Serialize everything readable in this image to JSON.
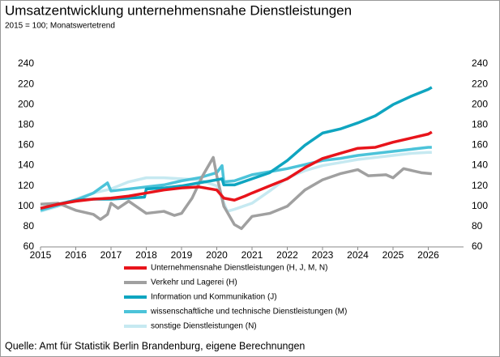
{
  "chart_data": {
    "type": "line",
    "title": "Umsatzentwicklung unternehmensnahe Dienstleistungen",
    "subtitle": "2015 = 100; Monatswertetrend",
    "source": "Quelle: Amt für Statistik Berlin Brandenburg, eigene Berechnungen",
    "xlim": [
      2015,
      2027
    ],
    "xticks": [
      2015,
      2016,
      2017,
      2018,
      2019,
      2020,
      2021,
      2022,
      2023,
      2024,
      2025,
      2026
    ],
    "ylim": [
      60,
      240
    ],
    "yticks": [
      60,
      80,
      100,
      120,
      140,
      160,
      180,
      200,
      220,
      240
    ],
    "y2lim": [
      60,
      240
    ],
    "y2ticks": [
      60,
      80,
      100,
      120,
      140,
      160,
      180,
      200,
      220,
      240
    ],
    "grid": false,
    "legend": "bottom",
    "series": [
      {
        "name": "sonstige Dienstleistungen (N)",
        "color": "#c6e9f1",
        "x": [
          2015,
          2015.5,
          2016,
          2016.5,
          2017,
          2017.5,
          2018,
          2018.5,
          2019,
          2019.5,
          2020,
          2020.3,
          2020.5,
          2021,
          2021.5,
          2022,
          2022.5,
          2023,
          2023.5,
          2024,
          2024.5,
          2025,
          2025.5,
          2026,
          2026.1
        ],
        "values": [
          95,
          100,
          107,
          113,
          117,
          124,
          128,
          128,
          127,
          126,
          120,
          95,
          97,
          103,
          115,
          128,
          135,
          140,
          143,
          146,
          148,
          150,
          152,
          153,
          153
        ]
      },
      {
        "name": "wissenschaftliche und technische Dienstleistungen (M)",
        "color": "#4cc3d9",
        "x": [
          2015,
          2015.5,
          2016,
          2016.5,
          2016.9,
          2017,
          2017.5,
          2018,
          2018.5,
          2019,
          2019.5,
          2020,
          2020.15,
          2020.2,
          2020.5,
          2021,
          2021.5,
          2022,
          2022.5,
          2023,
          2023.5,
          2024,
          2024.5,
          2025,
          2025.5,
          2026,
          2026.1
        ],
        "values": [
          96,
          101,
          106,
          113,
          123,
          115,
          117,
          119,
          121,
          125,
          128,
          133,
          140,
          124,
          125,
          131,
          134,
          137,
          141,
          145,
          147,
          150,
          152,
          154,
          156,
          158,
          158
        ]
      },
      {
        "name": "Verkehr und Lagerei (H)",
        "color": "#a0a0a0",
        "x": [
          2015,
          2015.5,
          2016,
          2016.5,
          2016.7,
          2016.9,
          2017,
          2017.2,
          2017.5,
          2018,
          2018.5,
          2018.8,
          2019,
          2019.3,
          2019.6,
          2019.9,
          2020,
          2020.2,
          2020.5,
          2020.7,
          2021,
          2021.5,
          2022,
          2022.5,
          2023,
          2023.5,
          2024,
          2024.3,
          2024.8,
          2025,
          2025.3,
          2025.8,
          2026.1
        ],
        "values": [
          102,
          103,
          96,
          92,
          87,
          92,
          103,
          98,
          105,
          93,
          95,
          91,
          93,
          108,
          130,
          148,
          130,
          100,
          82,
          78,
          90,
          93,
          100,
          116,
          126,
          132,
          136,
          130,
          131,
          128,
          137,
          133,
          132
        ]
      },
      {
        "name": "Information und Kommunikation (J)",
        "color": "#0fa5c0",
        "x": [
          2015,
          2015.5,
          2016,
          2016.5,
          2017,
          2017.5,
          2017.95,
          2018,
          2018.5,
          2019,
          2019.5,
          2020,
          2020.15,
          2020.2,
          2020.5,
          2021,
          2021.5,
          2022,
          2022.5,
          2023,
          2023.5,
          2024,
          2024.5,
          2025,
          2025.5,
          2026,
          2026.1
        ],
        "values": [
          98,
          102,
          106,
          107,
          107,
          108,
          109,
          117,
          118,
          120,
          123,
          126,
          127,
          121,
          121,
          127,
          133,
          145,
          160,
          172,
          176,
          182,
          189,
          200,
          208,
          215,
          217
        ]
      },
      {
        "name": "Unternehmensnahe Dienstleistungen (H, J, M, N)",
        "color": "#e8141b",
        "x": [
          2015,
          2015.5,
          2016,
          2016.5,
          2017,
          2017.5,
          2018,
          2018.5,
          2019,
          2019.5,
          2020,
          2020.2,
          2020.5,
          2020.8,
          2021,
          2021.5,
          2022,
          2022.5,
          2023,
          2023.5,
          2024,
          2024.5,
          2025,
          2025.5,
          2026,
          2026.1
        ],
        "values": [
          98,
          102,
          105,
          107,
          108,
          110,
          113,
          116,
          118,
          119,
          116,
          108,
          106,
          110,
          113,
          120,
          127,
          138,
          147,
          152,
          157,
          158,
          163,
          167,
          171,
          173
        ]
      }
    ],
    "legend_order": [
      4,
      2,
      3,
      1,
      0
    ]
  }
}
